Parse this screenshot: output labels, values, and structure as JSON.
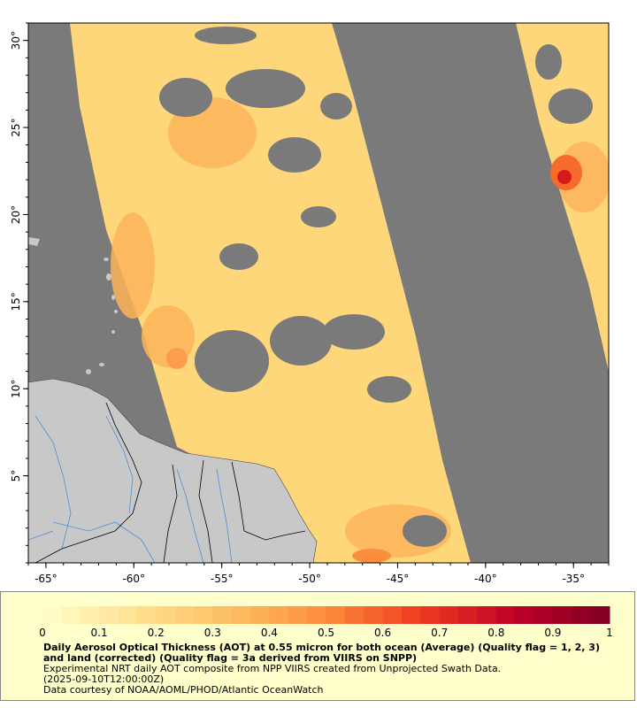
{
  "map": {
    "lon_range": [
      -66,
      -33
    ],
    "lat_range": [
      0,
      31
    ],
    "x_ticks": [
      {
        "lon": -65,
        "label": "-65°"
      },
      {
        "lon": -60,
        "label": "-60°"
      },
      {
        "lon": -55,
        "label": "-55°"
      },
      {
        "lon": -50,
        "label": "-50°"
      },
      {
        "lon": -45,
        "label": "-45°"
      },
      {
        "lon": -40,
        "label": "-40°"
      },
      {
        "lon": -35,
        "label": "-35°"
      }
    ],
    "y_ticks": [
      {
        "lat": 5,
        "label": "5°"
      },
      {
        "lat": 10,
        "label": "10°"
      },
      {
        "lat": 15,
        "label": "15°"
      },
      {
        "lat": 20,
        "label": "20°"
      },
      {
        "lat": 25,
        "label": "25°"
      },
      {
        "lat": 30,
        "label": "30°"
      }
    ],
    "colors": {
      "no_data": "#7a7a7a",
      "land": "#c8c8c8",
      "rivers": "#4a90d9",
      "borders": "#000000"
    }
  },
  "legend": {
    "ticks": [
      "0",
      "0.1",
      "0.2",
      "0.3",
      "0.4",
      "0.5",
      "0.6",
      "0.7",
      "0.8",
      "0.9",
      "1"
    ],
    "colormap": [
      "#ffffcc",
      "#ffe090",
      "#fdbe60",
      "#fc8d3c",
      "#f03b20",
      "#bd0026",
      "#800026"
    ]
  },
  "caption": {
    "title": "Daily Aerosol Optical Thickness (AOT) at 0.55 micron for both ocean (Average) (Quality flag = 1, 2, 3) and land (corrected) (Quality flag = 3a derived from VIIRS on SNPP)",
    "line1": "Experimental NRT daily AOT composite from NPP VIIRS created from Unprojected Swath Data.",
    "line2": "(2025-09-10T12:00:00Z)",
    "line3": "Data courtesy of NOAA/AOML/PHOD/Atlantic OceanWatch"
  }
}
